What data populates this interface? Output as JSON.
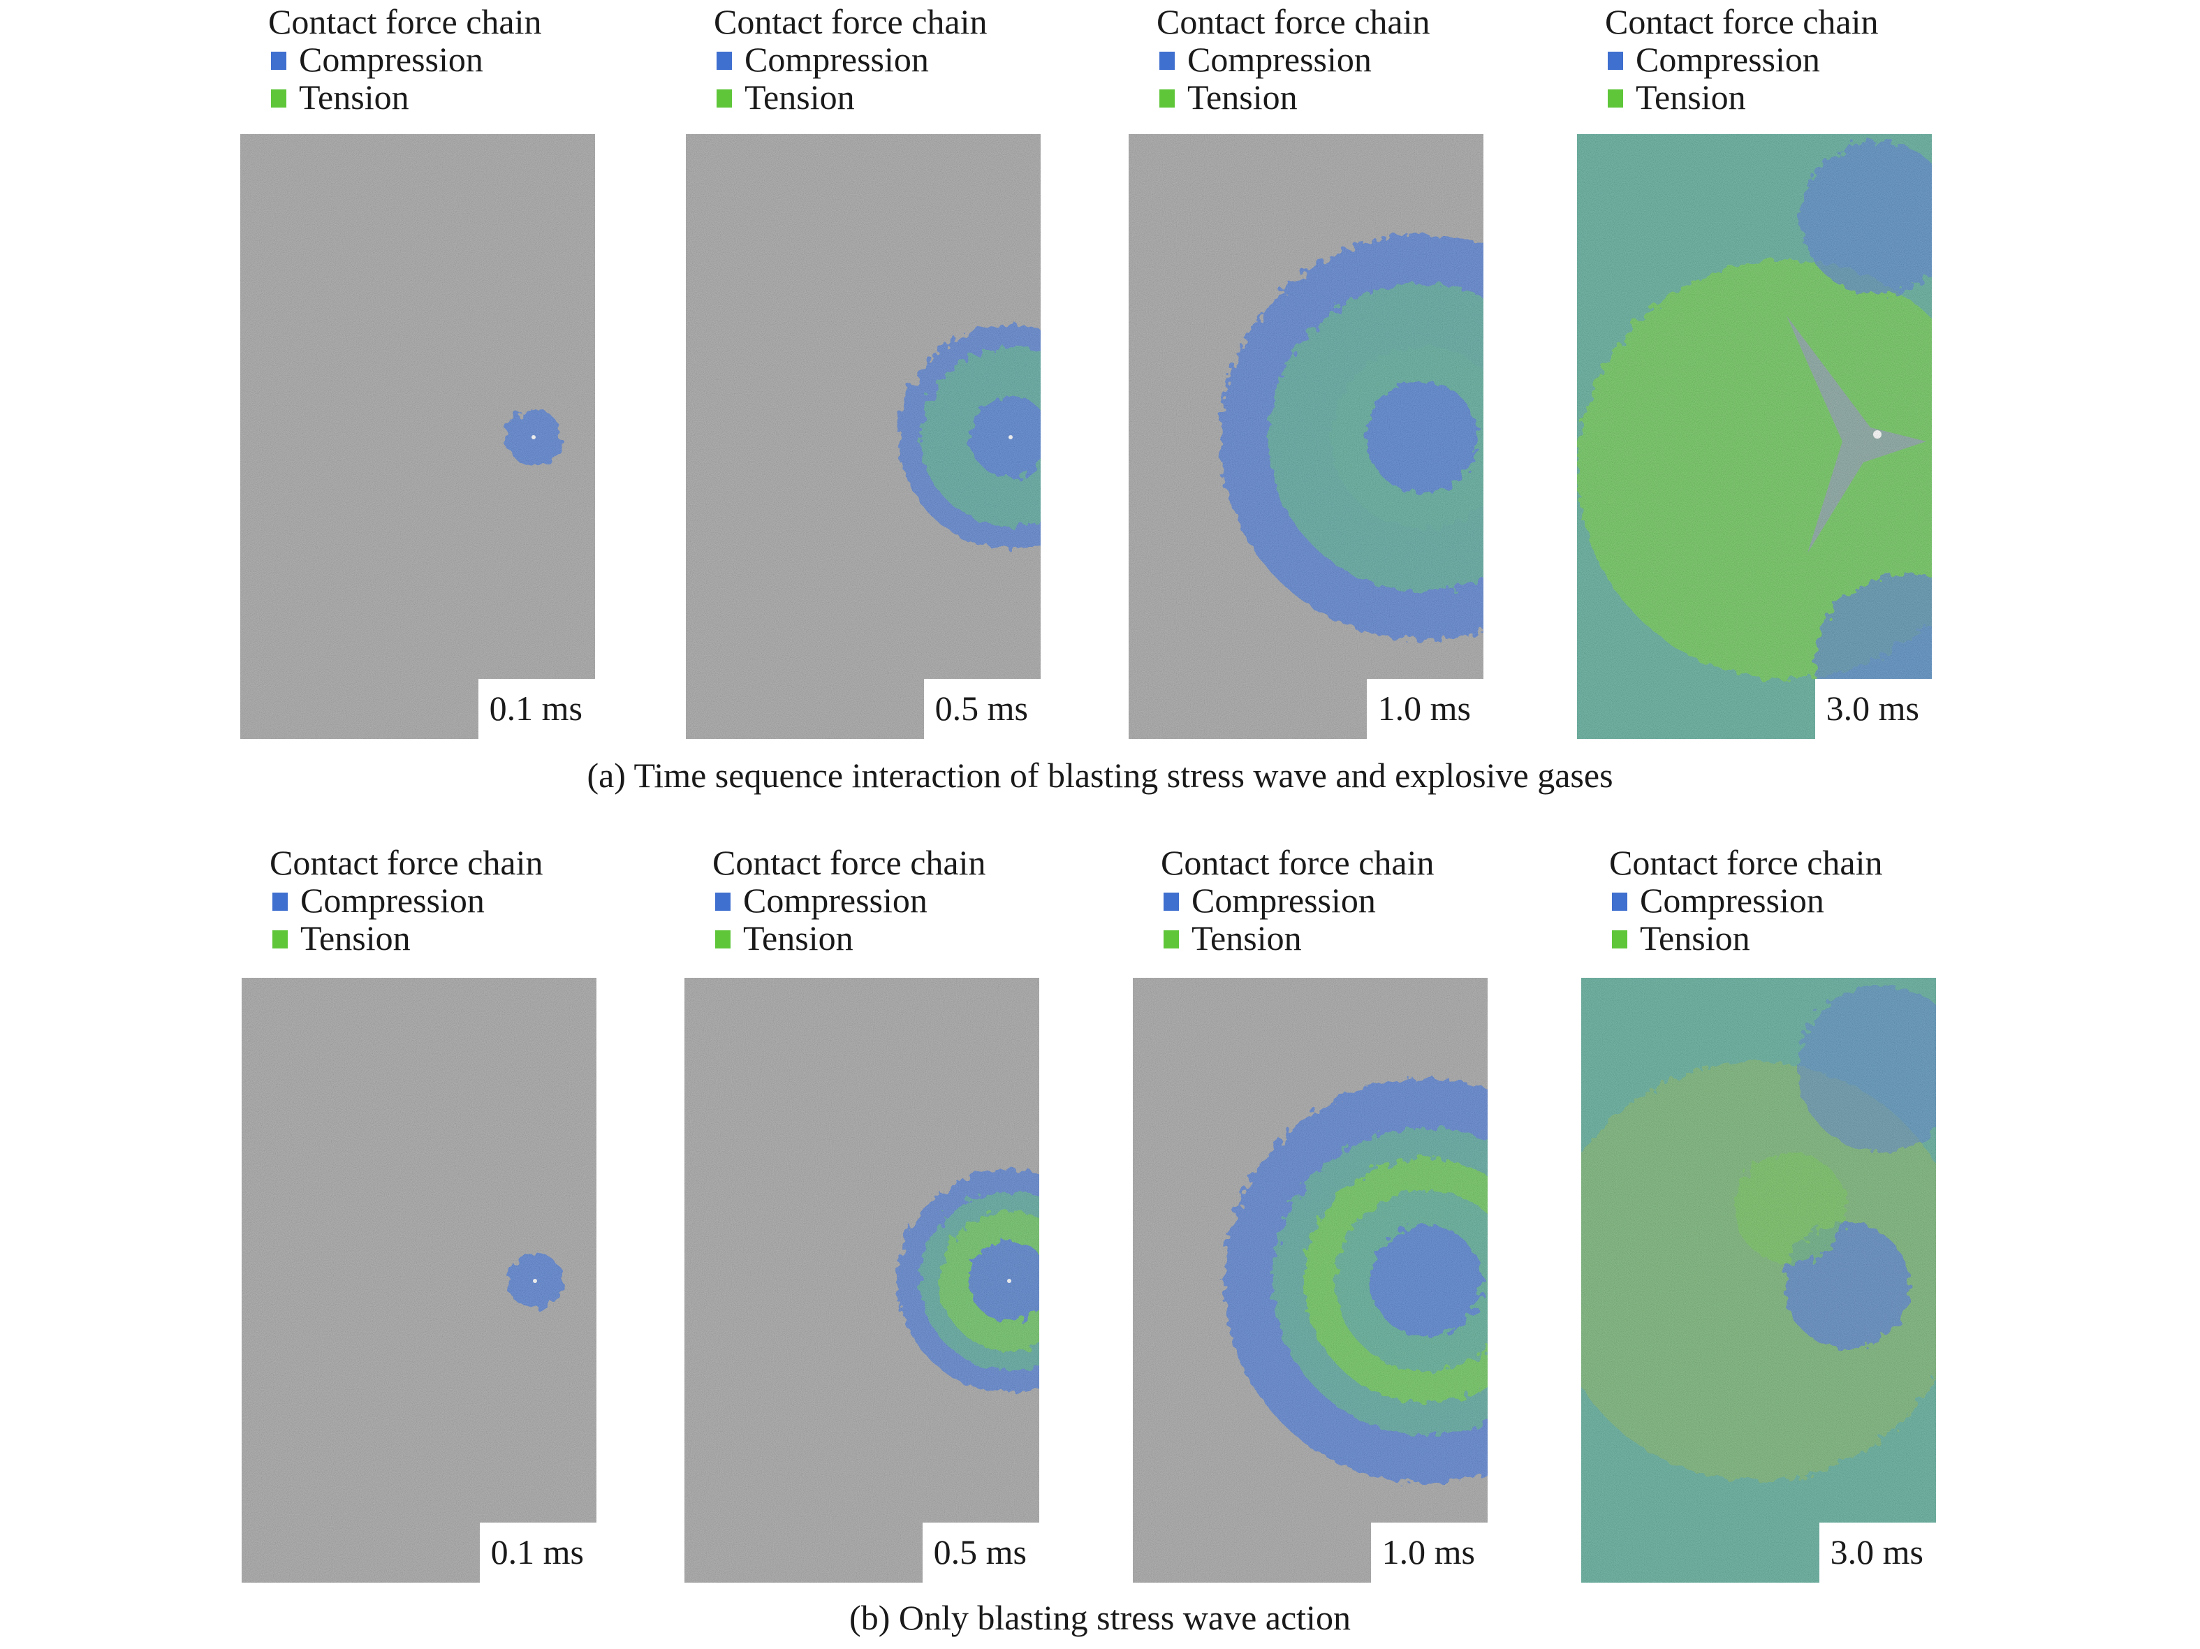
{
  "colors": {
    "background": "#ffffff",
    "rock_gray": "#9c9c9c",
    "compression": "#3f6fcf",
    "tension": "#5fc63a",
    "mixed": "#4aa38e"
  },
  "legend": {
    "title": "Contact force chain",
    "compression_label": "Compression",
    "tension_label": "Tension"
  },
  "figure": {
    "rows": [
      {
        "caption": "(a) Time sequence interaction of blasting stress wave and explosive gases",
        "panels": [
          {
            "time": "0.1 ms"
          },
          {
            "time": "0.5 ms"
          },
          {
            "time": "1.0 ms"
          },
          {
            "time": "3.0 ms"
          }
        ]
      },
      {
        "caption": "(b) Only blasting stress wave action",
        "panels": [
          {
            "time": "0.1 ms"
          },
          {
            "time": "0.5 ms"
          },
          {
            "time": "1.0 ms"
          },
          {
            "time": "3.0 ms"
          }
        ]
      }
    ]
  }
}
